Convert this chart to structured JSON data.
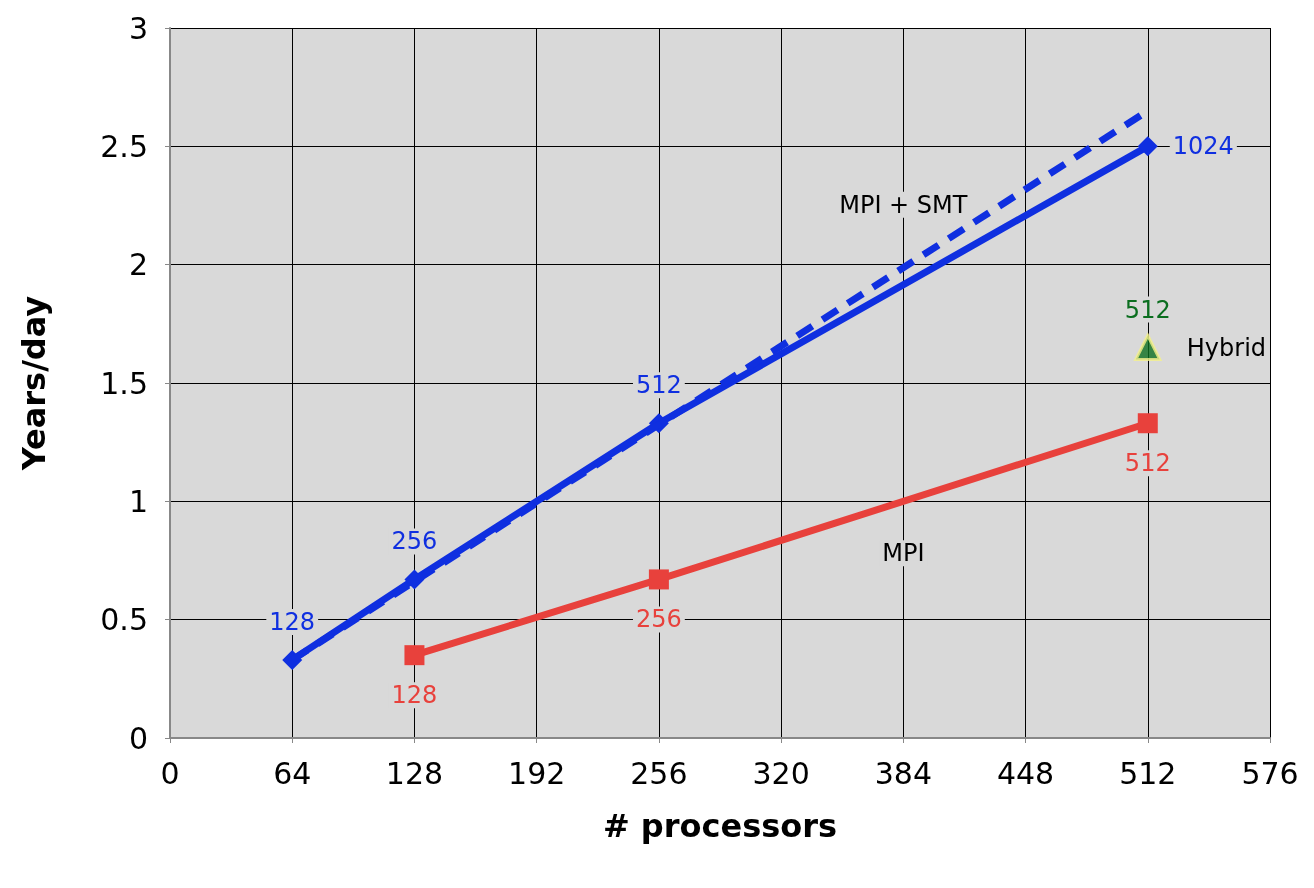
{
  "chart_data": {
    "type": "line",
    "xlabel": "# processors",
    "ylabel": "Years/day",
    "xlim": [
      0,
      576
    ],
    "xticks": [
      0,
      64,
      128,
      192,
      256,
      320,
      384,
      448,
      512,
      576
    ],
    "ylim": [
      0,
      3
    ],
    "yticks": [
      0,
      0.5,
      1,
      1.5,
      2,
      2.5,
      3
    ],
    "grid": true,
    "series": [
      {
        "name": "MPI + SMT",
        "color": "#0f2fe0",
        "x": [
          64,
          128,
          256,
          512
        ],
        "values": [
          0.33,
          0.67,
          1.33,
          2.5
        ],
        "marker": "diamond",
        "line_style": "solid"
      },
      {
        "color": "#0f2fe0",
        "x": [
          64,
          512
        ],
        "values": [
          0.33,
          2.65
        ],
        "marker": "none",
        "line_style": "dashed"
      },
      {
        "name": "MPI",
        "color": "#e8413c",
        "x": [
          128,
          256,
          512
        ],
        "values": [
          0.35,
          0.67,
          1.33
        ],
        "marker": "square",
        "line_style": "solid"
      },
      {
        "name": "Hybrid",
        "type": "scatter",
        "color": "#0b6e1f",
        "x": [
          512
        ],
        "values": [
          1.65
        ],
        "marker": "triangle"
      }
    ],
    "annotations": [
      {
        "text": "128",
        "x": 64,
        "y": 0.33
      },
      {
        "text": "256",
        "x": 128,
        "y": 0.67
      },
      {
        "text": "512",
        "x": 256,
        "y": 1.33
      },
      {
        "text": "1024",
        "x": 512,
        "y": 2.5
      },
      {
        "text": "128",
        "x": 128,
        "y": 0.35
      },
      {
        "text": "256",
        "x": 256,
        "y": 0.67
      },
      {
        "text": "512",
        "x": 512,
        "y": 1.33
      },
      {
        "text": "512",
        "x": 512,
        "y": 1.65
      }
    ]
  }
}
